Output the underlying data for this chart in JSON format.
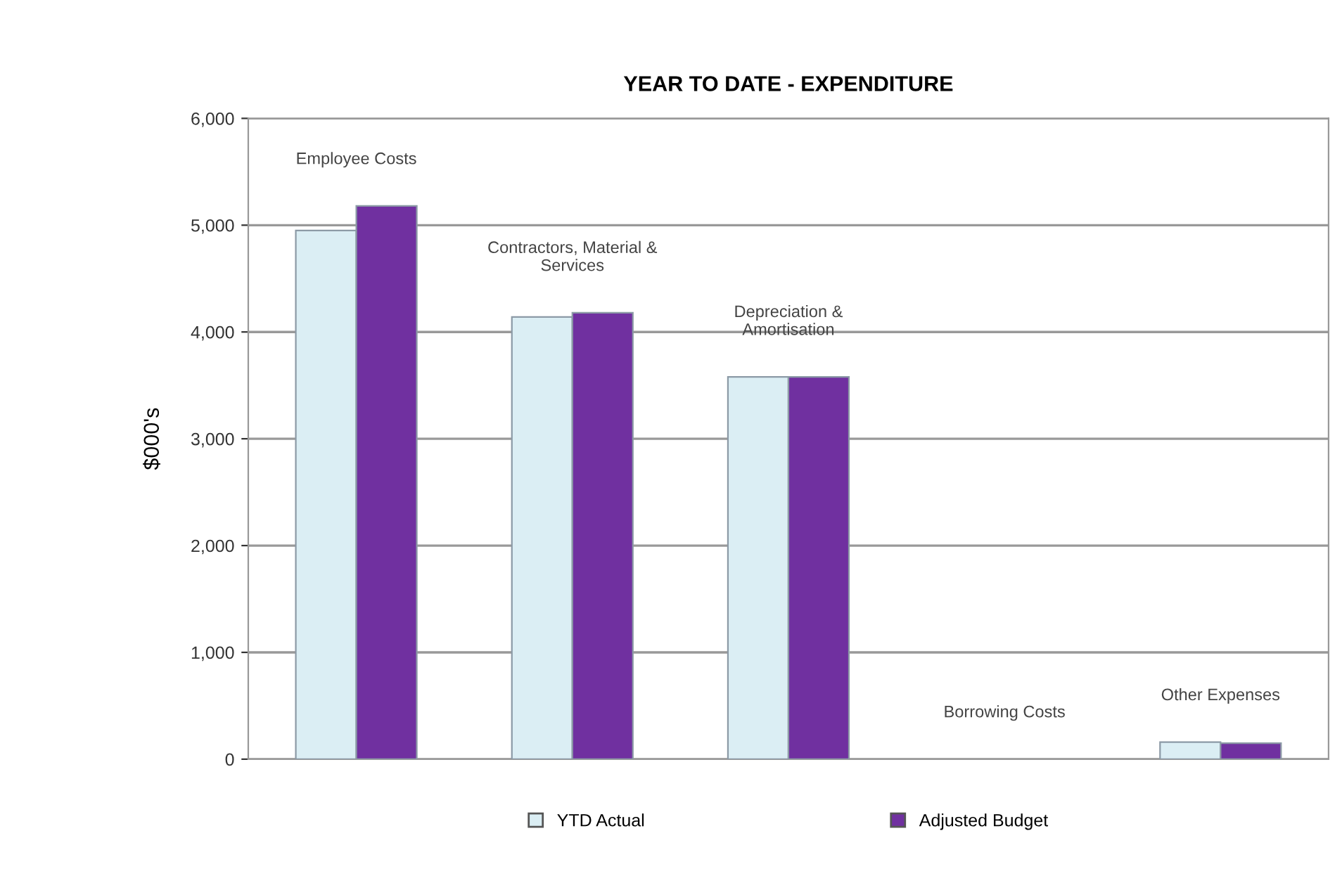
{
  "chart_data": {
    "type": "bar",
    "title": "YEAR TO DATE - EXPENDITURE",
    "ylabel": "$000's",
    "categories": [
      "Employee Costs",
      "Contractors, Material & Services",
      "Depreciation & Amortisation",
      "Borrowing Costs",
      "Other Expenses"
    ],
    "series": [
      {
        "name": "YTD Actual",
        "color": "#dbeef4",
        "values": [
          4950,
          4140,
          3580,
          0,
          160
        ]
      },
      {
        "name": "Adjusted Budget",
        "color": "#7030a0",
        "values": [
          5180,
          4180,
          3580,
          0,
          150
        ]
      }
    ],
    "ylim": [
      0,
      6000
    ],
    "yticks": [
      {
        "value": 0,
        "label": "0"
      },
      {
        "value": 1000,
        "label": "1,000"
      },
      {
        "value": 2000,
        "label": "2,000"
      },
      {
        "value": 3000,
        "label": "3,000"
      },
      {
        "value": 4000,
        "label": "4,000"
      },
      {
        "value": 5000,
        "label": "5,000"
      },
      {
        "value": 6000,
        "label": "6,000"
      }
    ],
    "grid": "y",
    "legend": "bottom"
  }
}
